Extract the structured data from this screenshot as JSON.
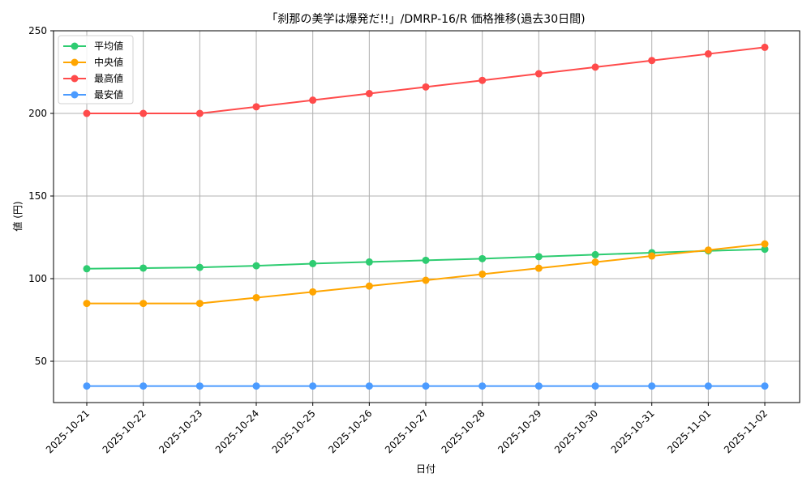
{
  "chart_data": {
    "type": "line",
    "title": "「刹那の美学は爆発だ!!」/DMRP-16/R 価格推移(過去30日間)",
    "xlabel": "日付",
    "ylabel": "値 (円)",
    "ylim": [
      25,
      250
    ],
    "yticks": [
      50,
      100,
      150,
      200,
      250
    ],
    "grid": true,
    "legend_position": "upper left",
    "categories": [
      "2025-10-21",
      "2025-10-22",
      "2025-10-23",
      "2025-10-24",
      "2025-10-25",
      "2025-10-26",
      "2025-10-27",
      "2025-10-28",
      "2025-10-29",
      "2025-10-30",
      "2025-10-31",
      "2025-11-01",
      "2025-11-02"
    ],
    "series": [
      {
        "name": "平均値",
        "color": "#2ecc71",
        "values": [
          106,
          106.4,
          106.8,
          107.8,
          109.1,
          110.1,
          111.1,
          112.1,
          113.3,
          114.5,
          115.7,
          116.8,
          117.8
        ]
      },
      {
        "name": "中央値",
        "color": "#ffa500",
        "values": [
          85,
          85,
          85,
          88.5,
          92,
          95.5,
          99,
          102.7,
          106.3,
          110,
          113.7,
          117.3,
          121
        ]
      },
      {
        "name": "最高値",
        "color": "#ff4b4b",
        "values": [
          200,
          200,
          200,
          204,
          208,
          212,
          216,
          220,
          224,
          228,
          232,
          236,
          240
        ]
      },
      {
        "name": "最安値",
        "color": "#4b9bff",
        "values": [
          35,
          35,
          35,
          35,
          35,
          35,
          35,
          35,
          35,
          35,
          35,
          35,
          35
        ]
      }
    ]
  }
}
